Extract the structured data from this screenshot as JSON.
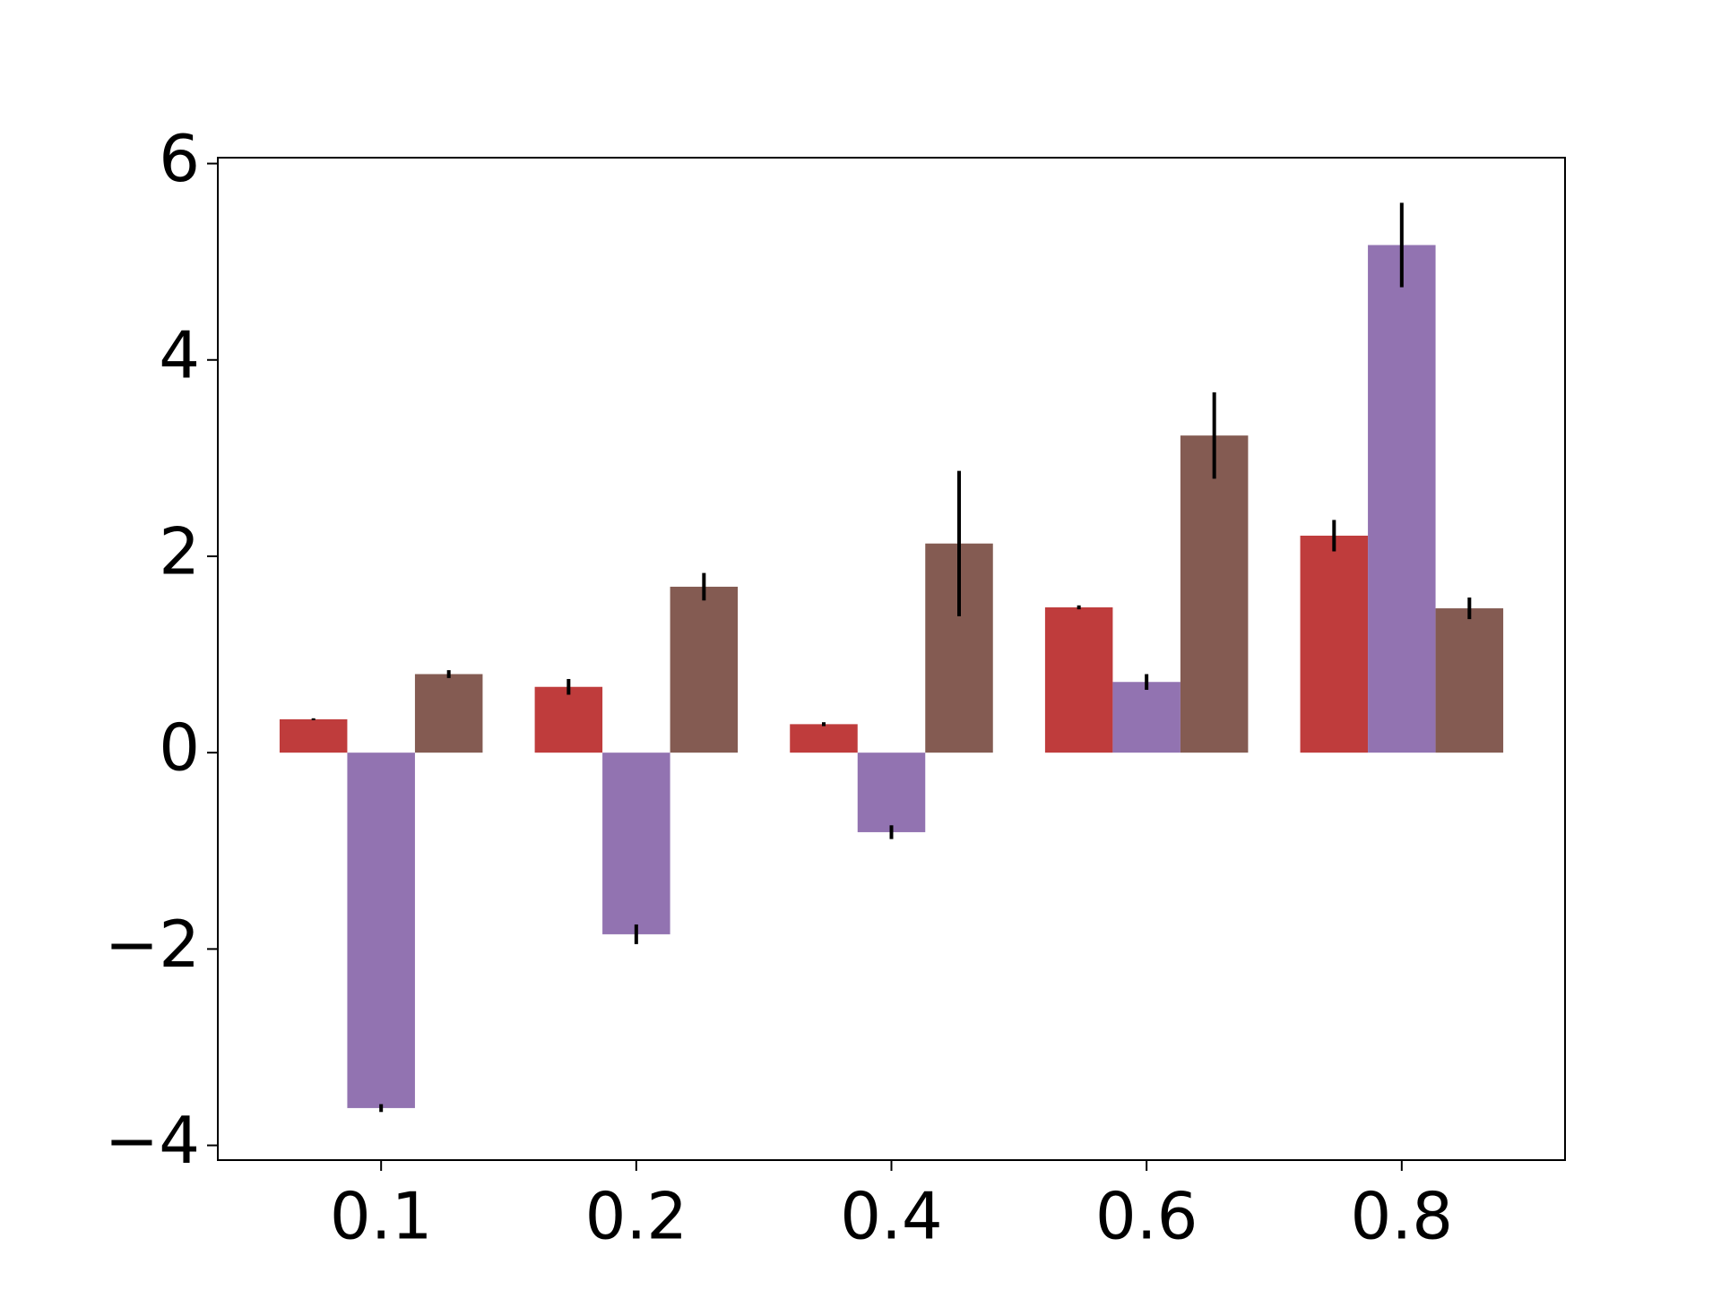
{
  "chart_data": {
    "type": "bar",
    "categories": [
      "0.1",
      "0.2",
      "0.4",
      "0.6",
      "0.8"
    ],
    "series": [
      {
        "color": "#bf3c3c",
        "values": [
          0.34,
          0.67,
          0.29,
          1.48,
          2.21
        ],
        "errors": [
          0.01,
          0.08,
          0.02,
          0.02,
          0.16
        ]
      },
      {
        "color": "#9273b1",
        "values": [
          -3.62,
          -1.85,
          -0.81,
          0.72,
          5.17
        ],
        "errors": [
          0.04,
          0.1,
          0.07,
          0.08,
          0.43
        ]
      },
      {
        "color": "#845b52",
        "values": [
          0.8,
          1.69,
          2.13,
          3.23,
          1.47
        ],
        "errors": [
          0.04,
          0.14,
          0.74,
          0.44,
          0.11
        ]
      }
    ],
    "ylim": [
      -4.15,
      6.06
    ],
    "yticks": [
      {
        "value": -4,
        "label": "−4"
      },
      {
        "value": -2,
        "label": "−2"
      },
      0,
      2,
      4,
      6
    ],
    "grid": false
  }
}
